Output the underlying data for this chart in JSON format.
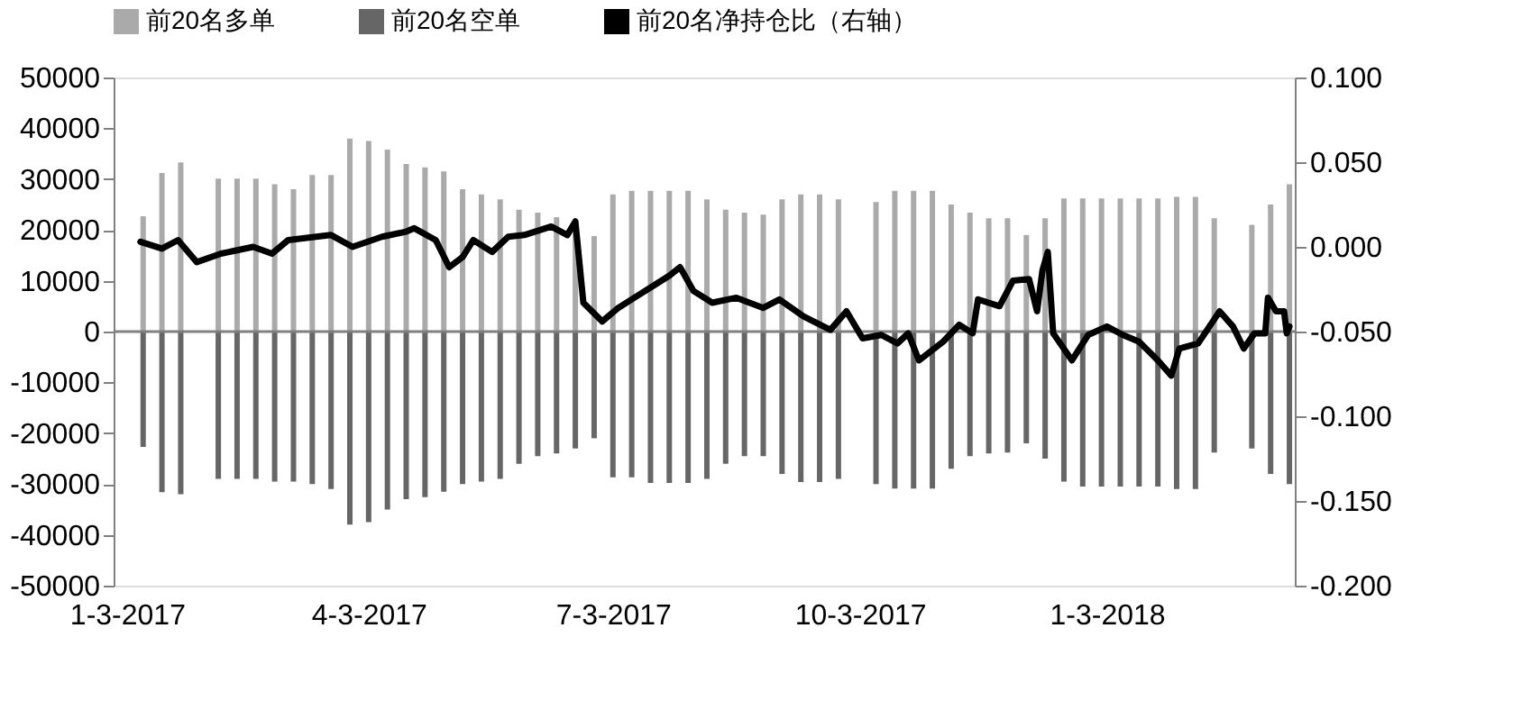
{
  "chart_data": {
    "type": "bar",
    "x": [
      "2017-01-09",
      "2017-01-16",
      "2017-01-23",
      "2017-02-06",
      "2017-02-13",
      "2017-02-20",
      "2017-02-27",
      "2017-03-06",
      "2017-03-13",
      "2017-03-20",
      "2017-03-27",
      "2017-04-03",
      "2017-04-10",
      "2017-04-17",
      "2017-04-24",
      "2017-05-01",
      "2017-05-08",
      "2017-05-15",
      "2017-05-22",
      "2017-05-29",
      "2017-06-05",
      "2017-06-12",
      "2017-06-19",
      "2017-06-26",
      "2017-07-03",
      "2017-07-10",
      "2017-07-17",
      "2017-07-24",
      "2017-07-31",
      "2017-08-07",
      "2017-08-14",
      "2017-08-21",
      "2017-08-28",
      "2017-09-04",
      "2017-09-11",
      "2017-09-18",
      "2017-09-25",
      "2017-10-09",
      "2017-10-16",
      "2017-10-23",
      "2017-10-30",
      "2017-11-06",
      "2017-11-13",
      "2017-11-20",
      "2017-11-27",
      "2017-12-04",
      "2017-12-11",
      "2017-12-18",
      "2017-12-25",
      "2018-01-01",
      "2018-01-08",
      "2018-01-15",
      "2018-01-22",
      "2018-01-29",
      "2018-02-05",
      "2018-02-12",
      "2018-02-26",
      "2018-03-05",
      "2018-03-12"
    ],
    "series": [
      {
        "name": "前20名多单",
        "color": "#aaaaaa",
        "values": [
          22700,
          31200,
          33300,
          30100,
          30100,
          30100,
          29000,
          28000,
          30800,
          30800,
          38000,
          37500,
          35800,
          33000,
          32300,
          31500,
          28000,
          27000,
          26000,
          24000,
          23400,
          22500,
          20000,
          18800,
          27000,
          27700,
          27700,
          27700,
          27700,
          26000,
          24000,
          23400,
          23000,
          26000,
          27000,
          27000,
          26000,
          25500,
          27700,
          27700,
          27700,
          25000,
          23400,
          22300,
          22300,
          19000,
          22300,
          26200,
          26200,
          26200,
          26200,
          26200,
          26200,
          26500,
          26500,
          22300,
          21000,
          25000,
          29000
        ]
      },
      {
        "name": "前20名空单",
        "color": "#666666",
        "values": [
          -22700,
          -31600,
          -32000,
          -29000,
          -29000,
          -29000,
          -29500,
          -29500,
          -30000,
          -31000,
          -38000,
          -37500,
          -35000,
          -33000,
          -32600,
          -31500,
          -30000,
          -29500,
          -29000,
          -26000,
          -24500,
          -24000,
          -23000,
          -21000,
          -28700,
          -28700,
          -29800,
          -29800,
          -29800,
          -29000,
          -26000,
          -24500,
          -24500,
          -28000,
          -29600,
          -29600,
          -29000,
          -30000,
          -30900,
          -30900,
          -30900,
          -27000,
          -24500,
          -24000,
          -23800,
          -22000,
          -25000,
          -29500,
          -30500,
          -30500,
          -30500,
          -30500,
          -30500,
          -31000,
          -31000,
          -23800,
          -23000,
          -28000,
          -30000
        ]
      },
      {
        "name": "前20名净持仓比（右轴）",
        "type": "line",
        "axis": "y2",
        "color": "#000000",
        "x": [
          "2017-01-08",
          "2017-01-16",
          "2017-01-22",
          "2017-01-29",
          "2017-02-07",
          "2017-02-19",
          "2017-02-26",
          "2017-03-04",
          "2017-03-20",
          "2017-03-28",
          "2017-04-08",
          "2017-04-17",
          "2017-04-20",
          "2017-04-28",
          "2017-05-03",
          "2017-05-08",
          "2017-05-12",
          "2017-05-19",
          "2017-05-25",
          "2017-05-31",
          "2017-06-10",
          "2017-06-16",
          "2017-06-19",
          "2017-06-22",
          "2017-06-29",
          "2017-07-05",
          "2017-07-11",
          "2017-07-18",
          "2017-07-24",
          "2017-07-28",
          "2017-08-02",
          "2017-08-09",
          "2017-08-18",
          "2017-08-28",
          "2017-09-03",
          "2017-09-12",
          "2017-09-22",
          "2017-09-28",
          "2017-10-04",
          "2017-10-11",
          "2017-10-17",
          "2017-10-21",
          "2017-10-25",
          "2017-11-03",
          "2017-11-09",
          "2017-11-14",
          "2017-11-16",
          "2017-11-24",
          "2017-11-29",
          "2017-12-05",
          "2017-12-08",
          "2017-12-10",
          "2017-12-12",
          "2017-12-14",
          "2017-12-21",
          "2017-12-27",
          "2018-01-03",
          "2018-01-09",
          "2018-01-15",
          "2018-01-22",
          "2018-01-27",
          "2018-01-30",
          "2018-02-06",
          "2018-02-14",
          "2018-02-19",
          "2018-02-23",
          "2018-02-27",
          "2018-03-03",
          "2018-03-04",
          "2018-03-07",
          "2018-03-10",
          "2018-03-11",
          "2018-03-12"
        ],
        "values": [
          0.003,
          -0.001,
          0.004,
          -0.009,
          -0.004,
          0.0,
          -0.004,
          0.004,
          0.007,
          0.0,
          0.006,
          0.009,
          0.011,
          0.004,
          -0.012,
          -0.006,
          0.004,
          -0.003,
          0.006,
          0.007,
          0.012,
          0.007,
          0.015,
          -0.033,
          -0.044,
          -0.036,
          -0.03,
          -0.023,
          -0.017,
          -0.012,
          -0.026,
          -0.033,
          -0.03,
          -0.036,
          -0.031,
          -0.041,
          -0.049,
          -0.038,
          -0.054,
          -0.052,
          -0.057,
          -0.051,
          -0.067,
          -0.056,
          -0.046,
          -0.051,
          -0.031,
          -0.035,
          -0.02,
          -0.019,
          -0.038,
          -0.014,
          -0.003,
          -0.051,
          -0.067,
          -0.052,
          -0.047,
          -0.052,
          -0.056,
          -0.067,
          -0.076,
          -0.06,
          -0.057,
          -0.038,
          -0.047,
          -0.06,
          -0.051,
          -0.051,
          -0.03,
          -0.038,
          -0.038,
          -0.051,
          -0.047
        ]
      }
    ],
    "xlim": [
      "2016-12-29",
      "2018-03-14"
    ],
    "xticks": [
      {
        "value": "2017-01-03",
        "label": "1-3-2017"
      },
      {
        "value": "2017-04-03",
        "label": "4-3-2017"
      },
      {
        "value": "2017-07-03",
        "label": "7-3-2017"
      },
      {
        "value": "2017-10-03",
        "label": "10-3-2017"
      },
      {
        "value": "2018-01-03",
        "label": "1-3-2018"
      }
    ],
    "ylim": [
      -50000,
      50000
    ],
    "yticks": [
      -50000,
      -40000,
      -30000,
      -20000,
      -10000,
      0,
      10000,
      20000,
      30000,
      40000,
      50000
    ],
    "y2lim": [
      -0.2,
      0.1
    ],
    "y2ticks": [
      {
        "value": -0.2,
        "label": "-0.200"
      },
      {
        "value": -0.15,
        "label": "-0.150"
      },
      {
        "value": -0.1,
        "label": "-0.100"
      },
      {
        "value": -0.05,
        "label": "-0.050"
      },
      {
        "value": 0,
        "label": "0.000"
      },
      {
        "value": 0.05,
        "label": "0.050"
      },
      {
        "value": 0.1,
        "label": "0.100"
      }
    ],
    "ref_lines": [
      {
        "axis": "y",
        "value": 0,
        "color": "#808080"
      }
    ],
    "legend": "top",
    "grid": false,
    "stacked": true,
    "line_style": "solid",
    "marker": "none"
  }
}
